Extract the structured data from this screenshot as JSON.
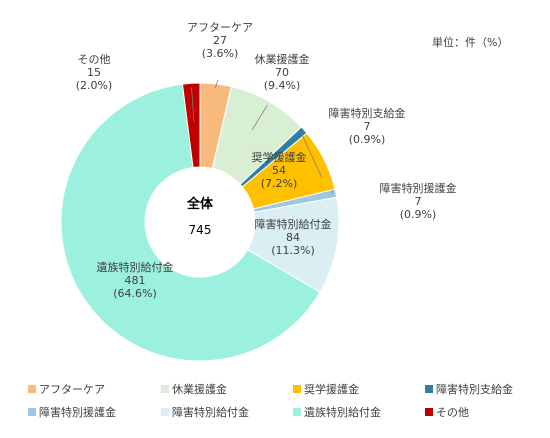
{
  "chart_data": {
    "type": "pie",
    "donut": true,
    "unit_note": "単位：件（%）",
    "center_label": "全体",
    "center_value": "745",
    "slices": [
      {
        "name": "アフターケア",
        "value": 27,
        "percent": "3.6%",
        "color": "#F8B97C"
      },
      {
        "name": "休業援護金",
        "value": 70,
        "percent": "9.4%",
        "color": "#D9EFD3"
      },
      {
        "name": "障害特別支給金",
        "value": 7,
        "percent": "0.9%",
        "color": "#2E7EA6"
      },
      {
        "name": "奨学援護金",
        "value": 54,
        "percent": "7.2%",
        "color": "#FFC000"
      },
      {
        "name": "障害特別援護金",
        "value": 7,
        "percent": "0.9%",
        "color": "#9CC8E2"
      },
      {
        "name": "障害特別給付金",
        "value": 84,
        "percent": "11.3%",
        "color": "#DAEEF3"
      },
      {
        "name": "遺族特別給付金",
        "value": 481,
        "percent": "64.6%",
        "color": "#9CF0DE"
      },
      {
        "name": "その他",
        "value": 15,
        "percent": "2.0%",
        "color": "#C00000"
      }
    ],
    "legend_order": [
      "アフターケア",
      "休業援護金",
      "奨学援護金",
      "障害特別支給金",
      "障害特別援護金",
      "障害特別給付金",
      "遺族特別給付金",
      "その他"
    ],
    "legend_position": "bottom"
  }
}
